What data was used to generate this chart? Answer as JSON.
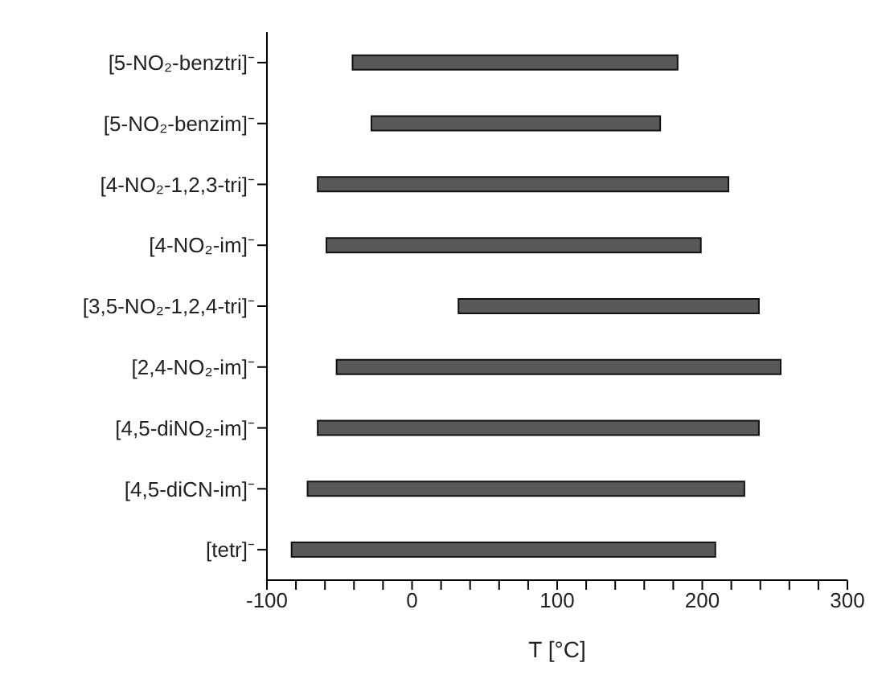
{
  "chart_data": {
    "type": "bar",
    "orientation": "horizontal",
    "xlabel": "T [°C]",
    "categories": [
      "[5-NO₂-benztri]⁻",
      "[5-NO₂-benzim]⁻",
      "[4-NO₂-1,2,3-tri]⁻",
      "[4-NO₂-im]⁻",
      "[3,5-NO₂-1,2,4-tri]⁻",
      "[2,4-NO₂-im]⁻",
      "[4,5-diNO₂-im]⁻",
      "[4,5-diCN-im]⁻",
      "[tetr]⁻"
    ],
    "base": [
      -41,
      -28,
      -65,
      -59,
      32,
      -52,
      -65,
      -72,
      -83
    ],
    "values": [
      224,
      199,
      283,
      258,
      207,
      306,
      304,
      301,
      292
    ],
    "color": "#595959",
    "xlim": [
      -100,
      300
    ],
    "xticks": [
      -100,
      {
        "value": -80,
        "label": null
      },
      {
        "value": -60,
        "label": null
      },
      {
        "value": -40,
        "label": null
      },
      {
        "value": -20,
        "label": null
      },
      0,
      {
        "value": 20,
        "label": null
      },
      {
        "value": 40,
        "label": null
      },
      {
        "value": 60,
        "label": null
      },
      {
        "value": 80,
        "label": null
      },
      100,
      {
        "value": 120,
        "label": null
      },
      {
        "value": 140,
        "label": null
      },
      {
        "value": 160,
        "label": null
      },
      {
        "value": 180,
        "label": null
      },
      200,
      {
        "value": 220,
        "label": null
      },
      {
        "value": 240,
        "label": null
      },
      {
        "value": 260,
        "label": null
      },
      {
        "value": 280,
        "label": null
      },
      300
    ],
    "grid": false,
    "legend": false
  }
}
